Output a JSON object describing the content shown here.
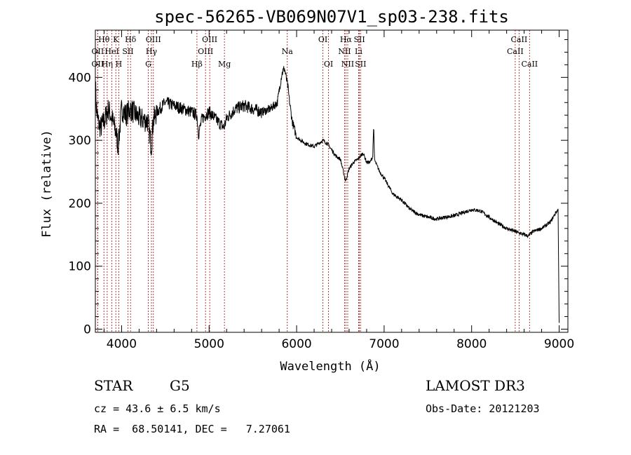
{
  "chart_data": {
    "type": "line",
    "title": "spec-56265-VB069N07V1_sp03-238.fits",
    "xlabel": "Wavelength (Å)",
    "ylabel": "Flux (relative)",
    "xlim": [
      3700,
      9100
    ],
    "ylim": [
      -5,
      475
    ],
    "xticks": [
      4000,
      5000,
      6000,
      7000,
      8000,
      9000
    ],
    "yticks": [
      0,
      100,
      200,
      300,
      400
    ],
    "spectrum_anchors": {
      "x": [
        3700,
        3710,
        3730,
        3760,
        3800,
        3850,
        3900,
        3940,
        3960,
        3980,
        4000,
        4050,
        4100,
        4200,
        4300,
        4340,
        4360,
        4400,
        4500,
        4600,
        4700,
        4800,
        4860,
        4880,
        4920,
        5000,
        5100,
        5170,
        5200,
        5300,
        5400,
        5500,
        5600,
        5700,
        5780,
        5830,
        5860,
        5880,
        5900,
        5920,
        5950,
        6000,
        6100,
        6200,
        6300,
        6350,
        6400,
        6450,
        6500,
        6560,
        6600,
        6650,
        6700,
        6760,
        6800,
        6840,
        6870,
        6880,
        6890,
        6900,
        6950,
        7000,
        7100,
        7200,
        7300,
        7400,
        7500,
        7600,
        7700,
        7800,
        7900,
        8000,
        8100,
        8200,
        8300,
        8400,
        8500,
        8600,
        8650,
        8700,
        8800,
        8900,
        8960,
        8990,
        9000
      ],
      "y": [
        400,
        355,
        330,
        320,
        330,
        350,
        330,
        310,
        290,
        320,
        350,
        340,
        350,
        335,
        330,
        290,
        330,
        345,
        360,
        355,
        350,
        345,
        340,
        310,
        335,
        345,
        330,
        320,
        335,
        350,
        355,
        350,
        345,
        350,
        360,
        405,
        415,
        400,
        385,
        360,
        330,
        305,
        295,
        290,
        300,
        295,
        285,
        275,
        270,
        235,
        255,
        265,
        270,
        280,
        265,
        265,
        275,
        325,
        270,
        265,
        250,
        240,
        215,
        205,
        190,
        182,
        178,
        175,
        178,
        180,
        185,
        190,
        188,
        178,
        168,
        160,
        155,
        150,
        148,
        155,
        160,
        170,
        185,
        190,
        10
      ]
    },
    "emission_lines": [
      {
        "name": "Hθ",
        "x": 3798,
        "row": 0
      },
      {
        "name": "OII",
        "x": 3727,
        "row": 1
      },
      {
        "name": "OII",
        "x": 3727,
        "row": 2
      },
      {
        "name": "Hη",
        "x": 3835,
        "row": 2
      },
      {
        "name": "HeI",
        "x": 3889,
        "row": 1
      },
      {
        "name": "K",
        "x": 3934,
        "row": 0
      },
      {
        "name": "SII",
        "x": 4072,
        "row": 1
      },
      {
        "name": "H",
        "x": 3968,
        "row": 2
      },
      {
        "name": "Hδ",
        "x": 4102,
        "row": 0
      },
      {
        "name": "OIII",
        "x": 4363,
        "row": 0
      },
      {
        "name": "Hγ",
        "x": 4341,
        "row": 1
      },
      {
        "name": "G",
        "x": 4305,
        "row": 2
      },
      {
        "name": "OIII",
        "x": 5007,
        "row": 0
      },
      {
        "name": "OIII",
        "x": 4959,
        "row": 1
      },
      {
        "name": "Hβ",
        "x": 4861,
        "row": 2
      },
      {
        "name": "Mg",
        "x": 5175,
        "row": 2
      },
      {
        "name": "Na",
        "x": 5893,
        "row": 1
      },
      {
        "name": "OI",
        "x": 6300,
        "row": 0
      },
      {
        "name": "OI",
        "x": 6364,
        "row": 2
      },
      {
        "name": "Hα",
        "x": 6563,
        "row": 0
      },
      {
        "name": "NII",
        "x": 6548,
        "row": 1
      },
      {
        "name": "NII",
        "x": 6584,
        "row": 2
      },
      {
        "name": "SII",
        "x": 6717,
        "row": 0
      },
      {
        "name": "Li",
        "x": 6708,
        "row": 1
      },
      {
        "name": "SII",
        "x": 6731,
        "row": 2
      },
      {
        "name": "CaII",
        "x": 8542,
        "row": 0
      },
      {
        "name": "CaII",
        "x": 8498,
        "row": 1
      },
      {
        "name": "CaII",
        "x": 8662,
        "row": 2
      }
    ],
    "colors": {
      "line": "#000000",
      "marker": "#b22222",
      "frame": "#000000"
    }
  },
  "footer": {
    "object_class": "STAR",
    "subclass": "G5",
    "survey": "LAMOST DR3",
    "cz": "cz = 43.6 ± 6.5 km/s",
    "obs_date": "Obs-Date: 20121203",
    "coords": "RA =  68.50141, DEC =   7.27061"
  }
}
